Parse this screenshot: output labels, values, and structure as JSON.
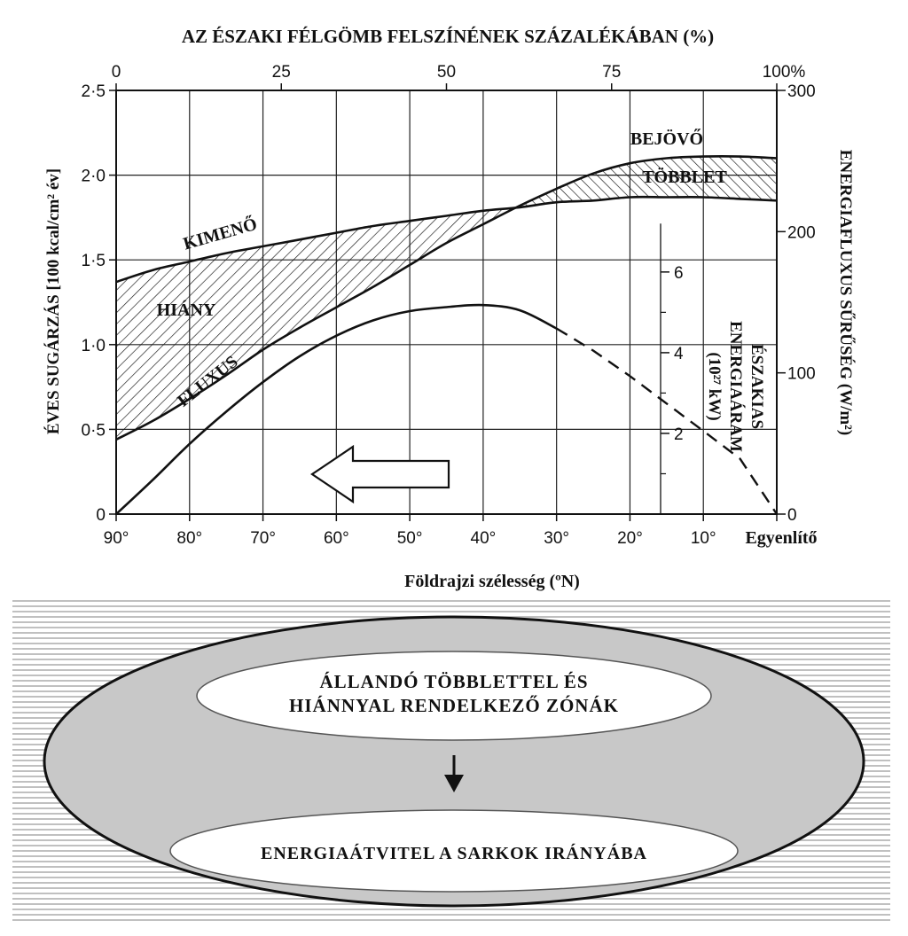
{
  "chart_data": {
    "type": "line",
    "title": "AZ ÉSZAKI FÉLGÖMB FELSZÍNÉNEK SZÁZALÉKÁBAN (%)",
    "xlabel": "Földrajzi szélesség (ºN)",
    "ylabel_left": "ÉVES SUGÁRZÁS [100 kcal/cm² év]",
    "ylabel_right": "ENERGIAFLUXUS SŰRŰSÉG (W/m²)",
    "ylabel_inner_lines": [
      "ÉSZAKIAS",
      "ENERGIAÁRAM",
      "(10²⁷ kW)"
    ],
    "x_ticks": [
      {
        "lat": 90,
        "label": "90°"
      },
      {
        "lat": 80,
        "label": "80°"
      },
      {
        "lat": 70,
        "label": "70°"
      },
      {
        "lat": 60,
        "label": "60°"
      },
      {
        "lat": 50,
        "label": "50°"
      },
      {
        "lat": 40,
        "label": "40°"
      },
      {
        "lat": 30,
        "label": "30°"
      },
      {
        "lat": 20,
        "label": "20°"
      },
      {
        "lat": 10,
        "label": "10°"
      },
      {
        "lat": 0,
        "label": "Egyenlítő"
      }
    ],
    "top_ticks": [
      {
        "pct": 0,
        "label": "0"
      },
      {
        "pct": 25,
        "label": "25"
      },
      {
        "pct": 50,
        "label": "50"
      },
      {
        "pct": 75,
        "label": "75"
      },
      {
        "pct": 100,
        "label": "100%"
      }
    ],
    "left_ticks": [
      {
        "v": 0,
        "label": "0"
      },
      {
        "v": 0.5,
        "label": "0·5"
      },
      {
        "v": 1.0,
        "label": "1·0"
      },
      {
        "v": 1.5,
        "label": "1·5"
      },
      {
        "v": 2.0,
        "label": "2·0"
      },
      {
        "v": 2.5,
        "label": "2·5"
      }
    ],
    "right_ticks": [
      {
        "v": 0,
        "label": "0"
      },
      {
        "v": 100,
        "label": "100"
      },
      {
        "v": 200,
        "label": "200"
      },
      {
        "v": 300,
        "label": "300"
      }
    ],
    "inner_ticks": [
      {
        "v": 2,
        "label": "2"
      },
      {
        "v": 4,
        "label": "4"
      },
      {
        "v": 6,
        "label": "6"
      }
    ],
    "ylim_left": [
      0,
      2.5
    ],
    "ylim_right": [
      0,
      300
    ],
    "ylim_inner": [
      0,
      10.5
    ],
    "xlim_lat": [
      90,
      0
    ],
    "grid": true,
    "series": [
      {
        "name": "BEJÖVŐ",
        "x": [
          90,
          85,
          80,
          75,
          70,
          65,
          60,
          55,
          50,
          45,
          40,
          35,
          30,
          25,
          20,
          15,
          10,
          5,
          0
        ],
        "values": [
          0.44,
          0.55,
          0.68,
          0.82,
          0.97,
          1.1,
          1.22,
          1.34,
          1.47,
          1.6,
          1.71,
          1.82,
          1.92,
          2.01,
          2.07,
          2.1,
          2.11,
          2.11,
          2.1
        ]
      },
      {
        "name": "KIMENŐ",
        "x": [
          90,
          85,
          80,
          75,
          70,
          65,
          60,
          55,
          50,
          45,
          40,
          35,
          30,
          25,
          20,
          15,
          10,
          5,
          0
        ],
        "values": [
          1.37,
          1.44,
          1.49,
          1.54,
          1.58,
          1.62,
          1.66,
          1.7,
          1.73,
          1.76,
          1.79,
          1.81,
          1.84,
          1.85,
          1.87,
          1.87,
          1.87,
          1.86,
          1.85
        ]
      },
      {
        "name": "FLUXUS",
        "unit": "10^27 kW",
        "x": [
          90,
          85,
          80,
          75,
          70,
          65,
          60,
          55,
          50,
          45,
          40,
          35,
          30,
          25,
          20,
          15,
          10,
          5,
          0
        ],
        "values": [
          0.0,
          0.85,
          1.74,
          2.54,
          3.27,
          3.91,
          4.42,
          4.8,
          5.03,
          5.13,
          5.18,
          5.05,
          4.6,
          4.05,
          3.42,
          2.74,
          2.06,
          1.37,
          0.0
        ],
        "dashed_from_lat": 30
      }
    ],
    "annotations": [
      {
        "text": "BEJÖVŐ"
      },
      {
        "text": "TÖBBLET"
      },
      {
        "text": "KIMENŐ"
      },
      {
        "text": "HIÁNY"
      },
      {
        "text": "FLUXUS"
      }
    ],
    "arrow_direction": "left"
  },
  "diagram": {
    "top_text_line1": "ÁLLANDÓ TÖBBLETTEL ÉS",
    "top_text_line2": "HIÁNNYAL RENDELKEZŐ ZÓNÁK",
    "bottom_text": "ENERGIAÁTVITEL A SARKOK IRÁNYÁBA",
    "outer_fill": "#c8c8c8",
    "stripe_color": "#c0c0c0"
  }
}
